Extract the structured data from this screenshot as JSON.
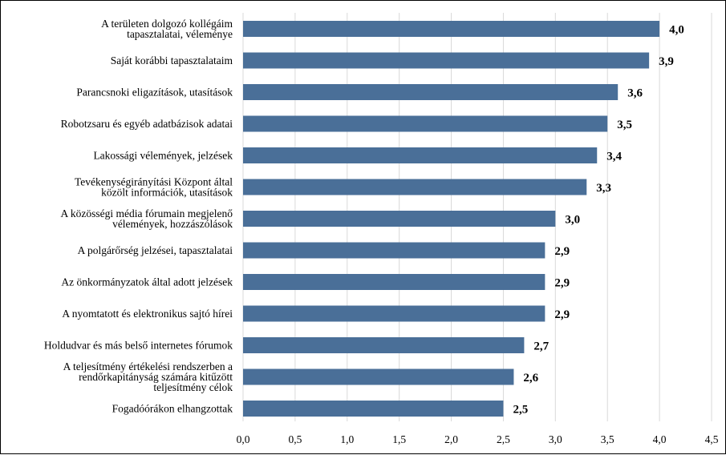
{
  "chart_data": {
    "type": "bar",
    "orientation": "horizontal",
    "categories": [
      "A területen dolgozó kollégáim\ntapasztalatai, véleménye",
      "Saját korábbi tapasztalataim",
      "Parancsnoki eligazítások, utasítások",
      "Robotzsaru és egyéb adatbázisok adatai",
      "Lakossági vélemények, jelzések",
      "Tevékenységirányítási Központ által\nközölt információk, utasítások",
      "A közösségi média fórumain megjelenő\nvélemények, hozzászólások",
      "A polgárőrség jelzései, tapasztalatai",
      "Az önkormányzatok által adott jelzések",
      "A nyomtatott és elektronikus sajtó hírei",
      "Holdudvar és más belső internetes fórumok",
      "A teljesítmény értékelési rendszerben a\nrendőrkapitányság számára kitűzött\nteljesítmény célok",
      "Fogadóórákon elhangzottak"
    ],
    "values": [
      4.0,
      3.9,
      3.6,
      3.5,
      3.4,
      3.3,
      3.0,
      2.9,
      2.9,
      2.9,
      2.7,
      2.6,
      2.5
    ],
    "value_labels": [
      "4,0",
      "3,9",
      "3,6",
      "3,5",
      "3,4",
      "3,3",
      "3,0",
      "2,9",
      "2,9",
      "2,9",
      "2,7",
      "2,6",
      "2,5"
    ],
    "x_ticks": [
      "0,0",
      "0,5",
      "1,0",
      "1,5",
      "2,0",
      "2,5",
      "3,0",
      "3,5",
      "4,0",
      "4,5"
    ],
    "xlim": [
      0,
      4.5
    ],
    "grid": "vertical",
    "legend": "none",
    "title": "",
    "xlabel": "",
    "ylabel": ""
  },
  "colors": {
    "bar": "#4a6f98",
    "grid": "#d9d9d9",
    "text": "#000000"
  }
}
